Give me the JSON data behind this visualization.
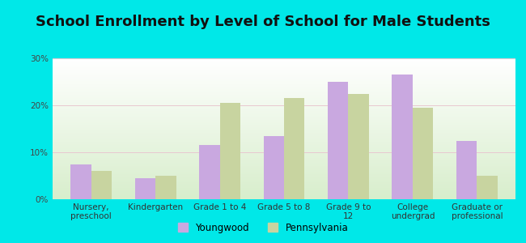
{
  "title": "School Enrollment by Level of School for Male Students",
  "categories": [
    "Nursery,\npreschool",
    "Kindergarten",
    "Grade 1 to 4",
    "Grade 5 to 8",
    "Grade 9 to\n12",
    "College\nundergrad",
    "Graduate or\nprofessional"
  ],
  "youngwood": [
    7.5,
    4.5,
    11.5,
    13.5,
    25.0,
    26.5,
    12.5
  ],
  "pennsylvania": [
    6.0,
    5.0,
    20.5,
    21.5,
    22.5,
    19.5,
    5.0
  ],
  "youngwood_color": "#c9a8e0",
  "pennsylvania_color": "#c8d4a0",
  "background_outer": "#00e8e8",
  "ylim": [
    0,
    30
  ],
  "yticks": [
    0,
    10,
    20,
    30
  ],
  "ytick_labels": [
    "0%",
    "10%",
    "20%",
    "30%"
  ],
  "legend_youngwood": "Youngwood",
  "legend_pennsylvania": "Pennsylvania",
  "title_fontsize": 13,
  "tick_fontsize": 7.5,
  "legend_fontsize": 8.5,
  "bar_width": 0.32
}
